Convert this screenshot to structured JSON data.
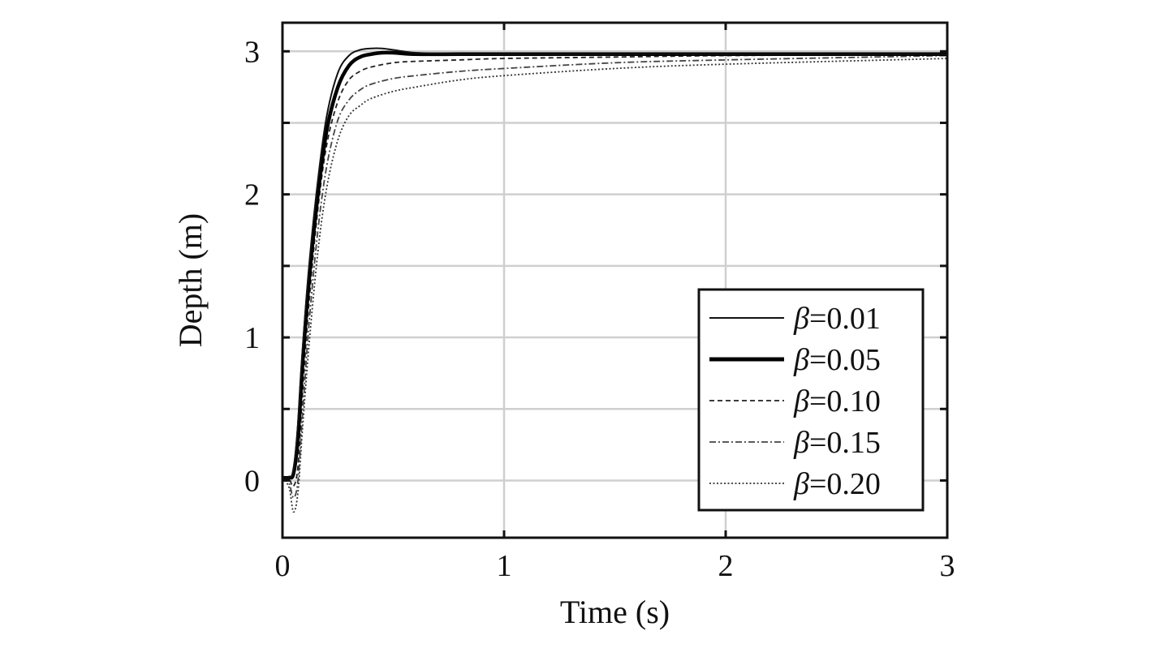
{
  "chart_data": {
    "type": "line",
    "title": "",
    "xlabel": "Time (s)",
    "ylabel": "Depth (m)",
    "xlim": [
      0,
      3
    ],
    "ylim": [
      -0.4,
      3.2
    ],
    "xticks": [
      "0",
      "1",
      "2",
      "3"
    ],
    "yticks": [
      "0",
      "1",
      "2",
      "3"
    ],
    "grid": true,
    "legend_position": "bottom-right",
    "legend_symbol": "β",
    "series": [
      {
        "name": "=0.01",
        "style": "solid-thin",
        "x": [
          0,
          0.03,
          0.05,
          0.07,
          0.09,
          0.12,
          0.16,
          0.2,
          0.25,
          0.3,
          0.35,
          0.4,
          0.45,
          0.5,
          0.6,
          0.8,
          1.0,
          1.5,
          2.0,
          3.0
        ],
        "y": [
          0.02,
          0.02,
          0.08,
          0.4,
          0.9,
          1.5,
          2.1,
          2.55,
          2.85,
          2.97,
          3.01,
          3.02,
          3.02,
          3.01,
          2.99,
          2.98,
          2.98,
          2.98,
          2.98,
          2.98
        ]
      },
      {
        "name": "=0.05",
        "style": "solid-thick",
        "x": [
          0,
          0.03,
          0.05,
          0.07,
          0.09,
          0.12,
          0.16,
          0.2,
          0.25,
          0.3,
          0.35,
          0.4,
          0.45,
          0.5,
          0.6,
          0.8,
          1.0,
          1.5,
          2.0,
          3.0
        ],
        "y": [
          0.02,
          0.02,
          0.05,
          0.3,
          0.8,
          1.4,
          2.0,
          2.45,
          2.75,
          2.9,
          2.96,
          2.98,
          2.99,
          2.99,
          2.98,
          2.98,
          2.98,
          2.98,
          2.98,
          2.98
        ]
      },
      {
        "name": "=0.10",
        "style": "dashed",
        "x": [
          0,
          0.03,
          0.05,
          0.07,
          0.09,
          0.12,
          0.16,
          0.2,
          0.25,
          0.3,
          0.35,
          0.4,
          0.5,
          0.6,
          0.8,
          1.0,
          1.5,
          2.0,
          3.0
        ],
        "y": [
          0.02,
          0.01,
          -0.04,
          0.1,
          0.6,
          1.25,
          1.9,
          2.35,
          2.65,
          2.8,
          2.86,
          2.89,
          2.92,
          2.93,
          2.94,
          2.95,
          2.96,
          2.97,
          2.98
        ]
      },
      {
        "name": "=0.15",
        "style": "dashdot",
        "x": [
          0,
          0.03,
          0.05,
          0.07,
          0.09,
          0.12,
          0.16,
          0.2,
          0.25,
          0.3,
          0.35,
          0.4,
          0.5,
          0.6,
          0.8,
          1.0,
          1.5,
          2.0,
          3.0
        ],
        "y": [
          0.02,
          -0.02,
          -0.12,
          0.0,
          0.45,
          1.1,
          1.75,
          2.2,
          2.52,
          2.66,
          2.73,
          2.77,
          2.81,
          2.83,
          2.86,
          2.88,
          2.92,
          2.94,
          2.97
        ]
      },
      {
        "name": "=0.20",
        "style": "dotted",
        "x": [
          0,
          0.03,
          0.05,
          0.07,
          0.09,
          0.12,
          0.16,
          0.2,
          0.25,
          0.3,
          0.35,
          0.4,
          0.5,
          0.6,
          0.8,
          1.0,
          1.5,
          2.0,
          3.0
        ],
        "y": [
          0.02,
          -0.05,
          -0.22,
          -0.08,
          0.35,
          0.95,
          1.6,
          2.05,
          2.38,
          2.55,
          2.62,
          2.67,
          2.72,
          2.75,
          2.8,
          2.83,
          2.88,
          2.91,
          2.95
        ]
      }
    ]
  }
}
